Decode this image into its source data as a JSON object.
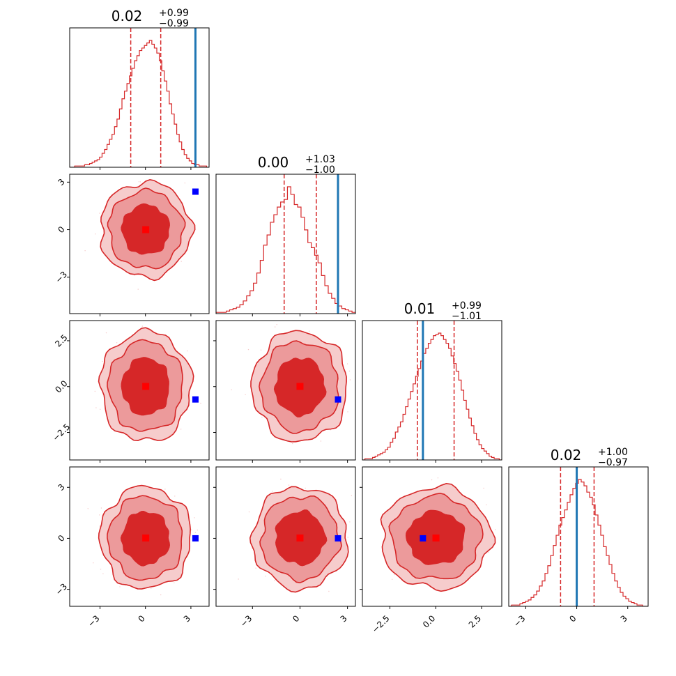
{
  "chart_data": {
    "type": "corner",
    "colors": {
      "posterior": "#d62728",
      "posterior_light": "#ec9a9b",
      "posterior_lighter": "#f6cccc",
      "truth_line": "#1f77b4",
      "truth_marker": "#0000ff"
    },
    "parameters": [
      {
        "title": {
          "main": "0.02",
          "sup": "+0.99",
          "sub": "−0.99"
        },
        "median": 0.02,
        "quantiles": [
          -0.97,
          1.01
        ],
        "truth": 3.3,
        "range": [
          -5.0,
          4.2
        ],
        "ticks": [
          -3,
          0,
          3
        ],
        "tick_labels": [
          "−3",
          "0",
          "3"
        ]
      },
      {
        "title": {
          "main": "0.00",
          "sup": "+1.03",
          "sub": "−1.00"
        },
        "median": 0.0,
        "quantiles": [
          -1.0,
          1.03
        ],
        "truth": 2.4,
        "range": [
          -5.3,
          3.5
        ],
        "ticks": [
          -3,
          0,
          3
        ],
        "tick_labels": [
          "−3",
          "0",
          "3"
        ]
      },
      {
        "title": {
          "main": "0.01",
          "sup": "+0.99",
          "sub": "−1.01"
        },
        "median": 0.01,
        "quantiles": [
          -1.0,
          1.0
        ],
        "truth": -0.7,
        "range": [
          -4.0,
          3.6
        ],
        "ticks": [
          -2.5,
          0.0,
          2.5
        ],
        "tick_labels": [
          "−2.5",
          "0.0",
          "2.5"
        ]
      },
      {
        "title": {
          "main": "0.02",
          "sup": "+1.00",
          "sub": "−0.97"
        },
        "median": 0.02,
        "quantiles": [
          -0.95,
          1.02
        ],
        "truth": 0.0,
        "range": [
          -4.0,
          4.2
        ],
        "ticks": [
          -3,
          0,
          3
        ],
        "tick_labels": [
          "−3",
          "0",
          "3"
        ]
      }
    ],
    "histograms": [
      [
        0,
        0,
        1,
        1,
        1,
        1,
        2,
        2,
        3,
        4,
        5,
        6,
        8,
        11,
        14,
        18,
        22,
        26,
        32,
        38,
        46,
        54,
        60,
        66,
        72,
        78,
        84,
        88,
        92,
        94,
        96,
        98,
        100,
        97,
        94,
        90,
        84,
        76,
        68,
        60,
        50,
        42,
        34,
        26,
        20,
        14,
        10,
        7,
        5,
        3,
        2,
        2,
        1,
        1,
        1,
        0
      ],
      [
        1,
        1,
        1,
        2,
        3,
        4,
        5,
        7,
        10,
        14,
        18,
        24,
        32,
        42,
        54,
        62,
        72,
        78,
        84,
        88,
        90,
        100,
        94,
        86,
        84,
        76,
        66,
        56,
        52,
        46,
        40,
        30,
        22,
        16,
        12,
        8,
        6,
        4,
        3,
        2,
        1
      ],
      [
        0,
        1,
        1,
        1,
        2,
        3,
        4,
        5,
        6,
        8,
        10,
        14,
        17,
        22,
        26,
        30,
        36,
        42,
        48,
        54,
        60,
        66,
        72,
        78,
        84,
        88,
        92,
        95,
        98,
        99,
        100,
        98,
        95,
        92,
        88,
        82,
        76,
        70,
        63,
        55,
        47,
        40,
        33,
        27,
        21,
        16,
        12,
        9,
        7,
        5,
        3,
        2,
        1,
        1,
        0
      ],
      [
        0,
        1,
        1,
        1,
        2,
        3,
        4,
        5,
        7,
        9,
        12,
        16,
        20,
        26,
        32,
        40,
        48,
        56,
        64,
        70,
        76,
        82,
        88,
        93,
        97,
        100,
        98,
        95,
        90,
        86,
        80,
        72,
        64,
        56,
        47,
        40,
        33,
        26,
        20,
        15,
        11,
        8,
        6,
        4,
        3,
        2,
        1,
        1,
        0,
        0
      ]
    ],
    "contour_levels": [
      0.39,
      0.86,
      0.99
    ]
  }
}
